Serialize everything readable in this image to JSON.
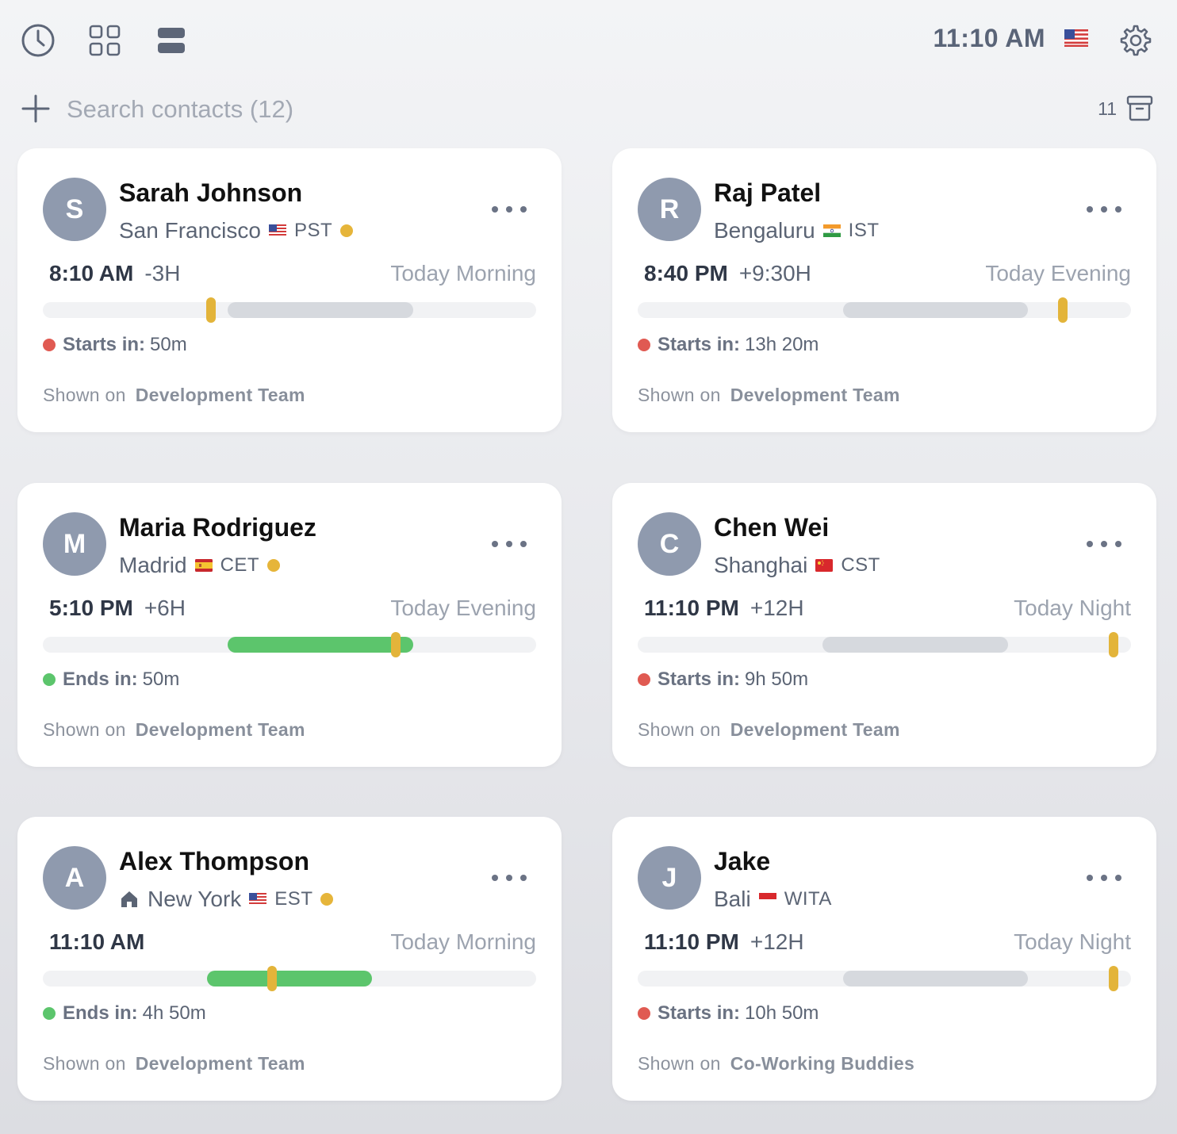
{
  "toolbar": {
    "current_time": "11:10 AM"
  },
  "search": {
    "placeholder": "Search contacts (12)",
    "archive_count": "11"
  },
  "colors": {
    "marker": "#e3b43a",
    "working": "#d6d9de",
    "active": "#5cc56c",
    "status_red": "#e05a52",
    "status_green": "#5cc56c",
    "avatar": "#8f9aae"
  },
  "contacts": [
    {
      "initial": "S",
      "name": "Sarah Johnson",
      "city": "San Francisco",
      "flag": "us-flag",
      "tz": "PST",
      "local_time": "8:10 AM",
      "offset": "-3H",
      "period": "Today Morning",
      "status_label": "Starts in:",
      "status_value": "50m",
      "status_color": "red",
      "shown_on": "Shown on",
      "team": "Development Team",
      "work_start": 9,
      "work_end": 18,
      "now_hour": 8.17,
      "active": false,
      "home": false,
      "dot": true
    },
    {
      "initial": "R",
      "name": "Raj Patel",
      "city": "Bengaluru",
      "flag": "in-flag",
      "tz": "IST",
      "local_time": "8:40 PM",
      "offset": "+9:30H",
      "period": "Today Evening",
      "status_label": "Starts in:",
      "status_value": "13h 20m",
      "status_color": "red",
      "shown_on": "Shown on",
      "team": "Development Team",
      "work_start": 10,
      "work_end": 19,
      "now_hour": 20.67,
      "active": false,
      "home": false,
      "dot": false
    },
    {
      "initial": "M",
      "name": "Maria Rodriguez",
      "city": "Madrid",
      "flag": "es-flag",
      "tz": "CET",
      "local_time": "5:10 PM",
      "offset": "+6H",
      "period": "Today Evening",
      "status_label": "Ends in:",
      "status_value": "50m",
      "status_color": "green",
      "shown_on": "Shown on",
      "team": "Development Team",
      "work_start": 9,
      "work_end": 18,
      "now_hour": 17.17,
      "active": true,
      "home": false,
      "dot": true
    },
    {
      "initial": "C",
      "name": "Chen Wei",
      "city": "Shanghai",
      "flag": "cn-flag",
      "tz": "CST",
      "local_time": "11:10 PM",
      "offset": "+12H",
      "period": "Today Night",
      "status_label": "Starts in:",
      "status_value": "9h 50m",
      "status_color": "red",
      "shown_on": "Shown on",
      "team": "Development Team",
      "work_start": 9,
      "work_end": 18,
      "now_hour": 23.17,
      "active": false,
      "home": false,
      "dot": false
    },
    {
      "initial": "A",
      "name": "Alex Thompson",
      "city": "New York",
      "flag": "us-flag",
      "tz": "EST",
      "local_time": "11:10 AM",
      "offset": "",
      "period": "Today Morning",
      "status_label": "Ends in:",
      "status_value": "4h 50m",
      "status_color": "green",
      "shown_on": "Shown on",
      "team": "Development Team",
      "work_start": 8,
      "work_end": 16,
      "now_hour": 11.17,
      "active": true,
      "home": true,
      "dot": true
    },
    {
      "initial": "J",
      "name": "Jake",
      "city": "Bali",
      "flag": "id-flag",
      "tz": "WITA",
      "local_time": "11:10 PM",
      "offset": "+12H",
      "period": "Today Night",
      "status_label": "Starts in:",
      "status_value": "10h 50m",
      "status_color": "red",
      "shown_on": "Shown on",
      "team": "Co-Working Buddies",
      "work_start": 10,
      "work_end": 19,
      "now_hour": 23.17,
      "active": false,
      "home": false,
      "dot": false
    }
  ]
}
